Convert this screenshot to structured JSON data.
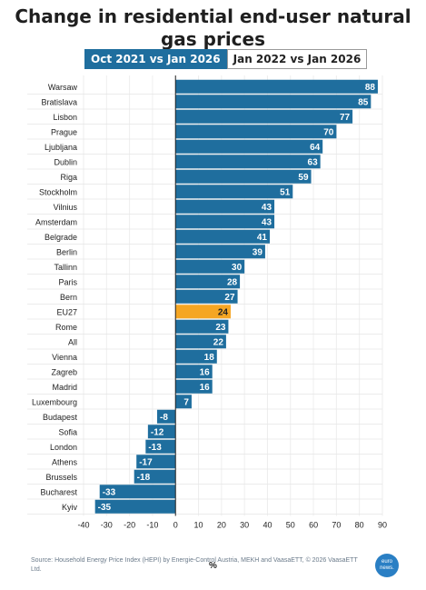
{
  "title": "Change in residential end-user natural gas prices",
  "tabs": [
    {
      "label": "Oct 2021 vs Jan 2026",
      "active": true
    },
    {
      "label": "Jan 2022 vs Jan 2026",
      "active": false
    }
  ],
  "source": "Source: Household Energy Price Index (HEPI) by Energie-Control Austria, MEKH and VaasaETT, © 2026 VaasaETT Ltd.",
  "logo_text": "euro news.",
  "colors": {
    "bar": "#1f6e9e",
    "highlight": "#f5a623",
    "text": "#222222"
  },
  "chart_data": {
    "type": "bar",
    "orientation": "horizontal",
    "categories": [
      "Warsaw",
      "Bratislava",
      "Lisbon",
      "Prague",
      "Ljubljana",
      "Dublin",
      "Riga",
      "Stockholm",
      "Vilnius",
      "Amsterdam",
      "Belgrade",
      "Berlin",
      "Tallinn",
      "Paris",
      "Bern",
      "EU27",
      "Rome",
      "All",
      "Vienna",
      "Zagreb",
      "Madrid",
      "Luxembourg",
      "Budapest",
      "Sofia",
      "London",
      "Athens",
      "Brussels",
      "Bucharest",
      "Kyiv"
    ],
    "values": [
      88,
      85,
      77,
      70,
      64,
      63,
      59,
      51,
      43,
      43,
      41,
      39,
      30,
      28,
      27,
      24,
      23,
      22,
      18,
      16,
      16,
      7,
      -8,
      -12,
      -13,
      -17,
      -18,
      -33,
      -35
    ],
    "highlight": "EU27",
    "xlim": [
      -40,
      90
    ],
    "xticks": [
      -40,
      -30,
      -20,
      -10,
      0,
      10,
      20,
      30,
      40,
      50,
      60,
      70,
      80,
      90
    ],
    "xlabel": "%",
    "ylabel": ""
  }
}
